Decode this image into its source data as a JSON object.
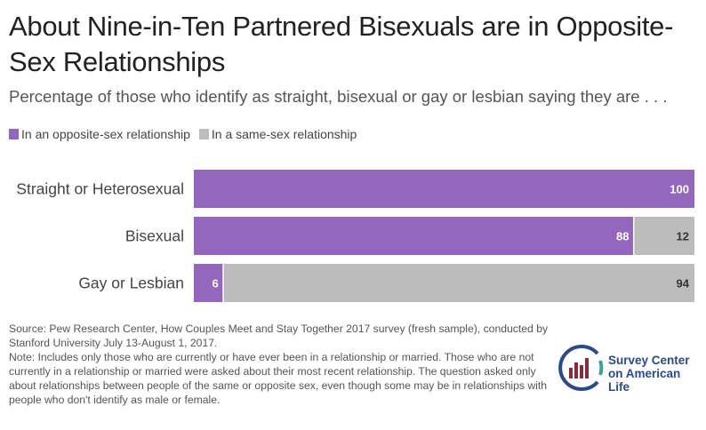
{
  "title": "About Nine-in-Ten Partnered Bisexuals are in Opposite-Sex Relationships",
  "subtitle": "Percentage of those who identify as straight, bisexual or gay or lesbian saying they are . . .",
  "colors": {
    "opposite": "#9367bd",
    "same": "#bcbcbc"
  },
  "chart_data": {
    "type": "bar",
    "orientation": "horizontal",
    "stacked": true,
    "categories": [
      "Straight or Heterosexual",
      "Bisexual",
      "Gay or Lesbian"
    ],
    "series": [
      {
        "name": "In an opposite-sex relationship",
        "values": [
          100,
          88,
          6
        ]
      },
      {
        "name": "In a same-sex relationship",
        "values": [
          0,
          12,
          94
        ]
      }
    ],
    "data_labels": [
      [
        "100",
        ""
      ],
      [
        "88",
        "12"
      ],
      [
        "6",
        "94"
      ]
    ],
    "xlim": [
      0,
      100
    ],
    "grid": false,
    "legend": "top-left"
  },
  "notes": {
    "source": "Source: Pew Research Center, How Couples Meet and Stay Together 2017 survey (fresh sample), conducted by Stanford University July 13-August 1, 2017.",
    "note": "Note: Includes only those who are currently or have ever been in a relationship or married. Those who are not currently in a relationship or married were asked about their most recent relationship. The question asked only about relationships between people of the same or opposite sex, even though some may be in relationships with people who don't identify as male or female."
  },
  "logo": {
    "line1": "Survey Center",
    "line2": "on American Life",
    "icon": "bar-chart-circle-logo"
  }
}
